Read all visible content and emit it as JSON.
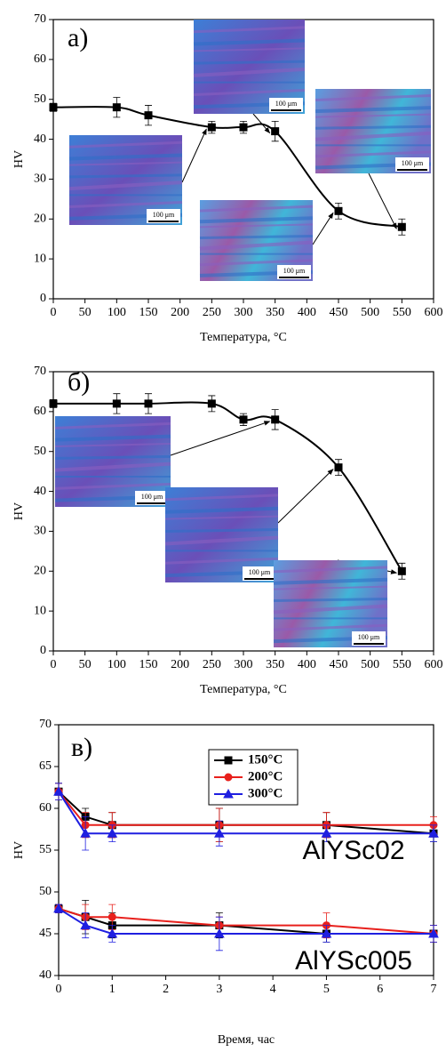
{
  "chart_data": [
    {
      "type": "line",
      "title": "а)",
      "x_label": "Температура, °C",
      "y_label": "HV",
      "xlim": [
        0,
        600
      ],
      "ylim": [
        0,
        70
      ],
      "xticks": [
        0,
        50,
        100,
        150,
        200,
        250,
        300,
        350,
        400,
        450,
        500,
        550,
        600
      ],
      "yticks": [
        0,
        10,
        20,
        30,
        40,
        50,
        60,
        70
      ],
      "smooth": true,
      "series": [
        {
          "color": "#000000",
          "marker": "square",
          "x": [
            0,
            100,
            150,
            250,
            300,
            350,
            450,
            550
          ],
          "values": [
            48,
            48,
            46,
            43,
            43,
            42,
            22,
            18
          ],
          "errors": [
            1,
            2.5,
            2.5,
            1.5,
            1.5,
            2.5,
            2,
            2
          ]
        }
      ],
      "annotations": [
        "100 μm",
        "100 μm",
        "100 μm",
        "100 μm"
      ]
    },
    {
      "type": "line",
      "title": "б)",
      "x_label": "Температура, °C",
      "y_label": "HV",
      "xlim": [
        0,
        600
      ],
      "ylim": [
        0,
        70
      ],
      "xticks": [
        0,
        50,
        100,
        150,
        200,
        250,
        300,
        350,
        400,
        450,
        500,
        550,
        600
      ],
      "yticks": [
        0,
        10,
        20,
        30,
        40,
        50,
        60,
        70
      ],
      "smooth": true,
      "series": [
        {
          "color": "#000000",
          "marker": "square",
          "x": [
            0,
            100,
            150,
            250,
            300,
            350,
            450,
            550
          ],
          "values": [
            62,
            62,
            62,
            62,
            58,
            58,
            46,
            20
          ],
          "errors": [
            1,
            2.5,
            2.5,
            2,
            1.5,
            2.5,
            2,
            2
          ]
        }
      ],
      "annotations": [
        "100 μm",
        "100 μm",
        "100 μm"
      ]
    },
    {
      "type": "line",
      "title": "в)",
      "x_label": "Время, час",
      "y_label": "HV",
      "xlim": [
        0,
        7
      ],
      "ylim": [
        40,
        70
      ],
      "xticks": [
        0,
        1,
        2,
        3,
        4,
        5,
        6,
        7
      ],
      "yticks": [
        40,
        45,
        50,
        55,
        60,
        65,
        70
      ],
      "smooth": false,
      "series": [
        {
          "name": "150°C",
          "color": "#000000",
          "marker": "square",
          "x": [
            0,
            0.5,
            1,
            3,
            5,
            7,
            null,
            0,
            0.5,
            1,
            3,
            5,
            7
          ],
          "values": [
            62,
            59,
            58,
            58,
            58,
            57,
            null,
            48,
            47,
            46,
            46,
            45,
            45
          ],
          "errors": [
            1,
            1,
            1.5,
            2,
            1.5,
            1,
            null,
            0.5,
            2,
            1.5,
            1.5,
            1,
            1
          ]
        },
        {
          "name": "200°C",
          "color": "#e8201c",
          "marker": "circle",
          "x": [
            0,
            0.5,
            1,
            3,
            5,
            7,
            null,
            0,
            0.5,
            1,
            3,
            5,
            7
          ],
          "values": [
            62,
            58,
            58,
            58,
            58,
            58,
            null,
            48,
            47,
            47,
            46,
            46,
            45
          ],
          "errors": [
            1,
            1.5,
            1.5,
            2,
            1.5,
            1,
            null,
            0.5,
            1.5,
            1.5,
            1,
            1.5,
            1
          ]
        },
        {
          "name": "300°C",
          "color": "#1f1fe0",
          "marker": "triangle",
          "x": [
            0,
            0.5,
            1,
            3,
            5,
            7,
            null,
            0,
            0.5,
            1,
            3,
            5,
            7
          ],
          "values": [
            62,
            57,
            57,
            57,
            57,
            57,
            null,
            48,
            46,
            45,
            45,
            45,
            45
          ],
          "errors": [
            1,
            2,
            1,
            1.5,
            1,
            1,
            null,
            0.5,
            1.5,
            1,
            2,
            1,
            1
          ]
        }
      ],
      "annotations": [
        "AlYSc02",
        "AlYSc005"
      ]
    }
  ]
}
